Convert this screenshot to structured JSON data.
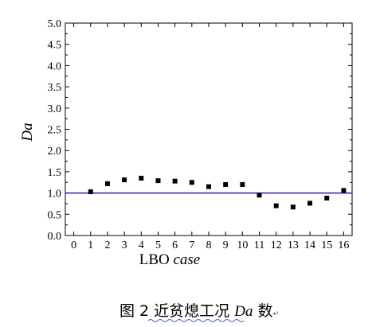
{
  "chart_data": {
    "type": "scatter",
    "title": "",
    "xlabel_main": "LBO",
    "xlabel_italic": "case",
    "ylabel": "Da",
    "xlim": [
      -0.5,
      16.5
    ],
    "ylim": [
      0,
      5.0
    ],
    "x_ticks": [
      "0",
      "1",
      "2",
      "3",
      "4",
      "5",
      "6",
      "7",
      "8",
      "9",
      "10",
      "11",
      "12",
      "13",
      "14",
      "15",
      "16"
    ],
    "y_ticks": [
      "0.0",
      "0.5",
      "1.0",
      "1.5",
      "2.0",
      "2.5",
      "3.0",
      "3.5",
      "4.0",
      "4.5",
      "5.0"
    ],
    "reference_line": {
      "y": 1.0,
      "color": "#1f1fcc"
    },
    "marker_color": "#000000",
    "points": [
      {
        "x": 1,
        "y": 1.03
      },
      {
        "x": 2,
        "y": 1.22
      },
      {
        "x": 3,
        "y": 1.31
      },
      {
        "x": 4,
        "y": 1.35
      },
      {
        "x": 5,
        "y": 1.29
      },
      {
        "x": 6,
        "y": 1.28
      },
      {
        "x": 7,
        "y": 1.25
      },
      {
        "x": 8,
        "y": 1.15
      },
      {
        "x": 9,
        "y": 1.2
      },
      {
        "x": 10,
        "y": 1.2
      },
      {
        "x": 11,
        "y": 0.95
      },
      {
        "x": 12,
        "y": 0.7
      },
      {
        "x": 13,
        "y": 0.67
      },
      {
        "x": 14,
        "y": 0.76
      },
      {
        "x": 15,
        "y": 0.88
      },
      {
        "x": 16,
        "y": 1.06
      }
    ]
  },
  "caption": {
    "prefix": "图 2 ",
    "text_a": "近贫熄工况 ",
    "italic": "Da",
    "text_b": " 数",
    "mark": "↵"
  }
}
